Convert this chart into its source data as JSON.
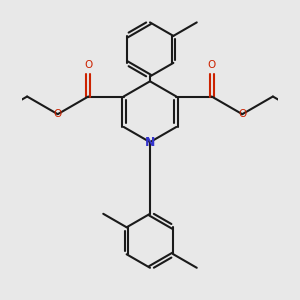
{
  "background_color": "#e8e8e8",
  "bond_color": "#1a1a1a",
  "nitrogen_color": "#3333cc",
  "oxygen_color": "#cc2200",
  "lw": 1.5,
  "lw_ring": 1.5,
  "figsize": [
    3.0,
    3.0
  ],
  "dpi": 100,
  "xlim": [
    -2.6,
    2.6
  ],
  "ylim": [
    -3.0,
    3.0
  ]
}
